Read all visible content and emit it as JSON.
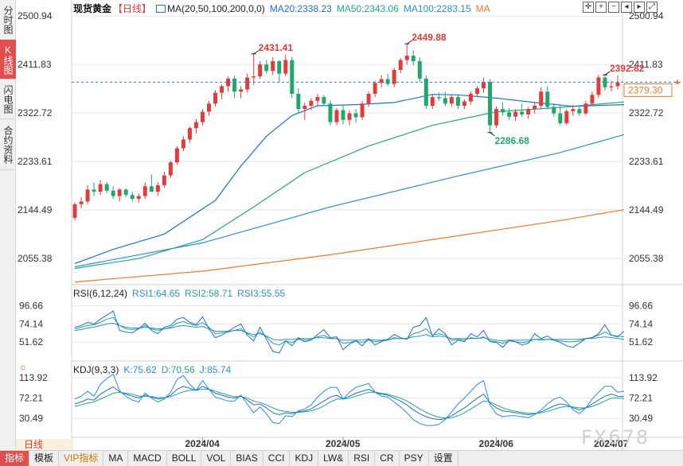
{
  "left_tabs": [
    {
      "label": "分时图",
      "active": false
    },
    {
      "label": "K线图",
      "active": true
    },
    {
      "label": "闪电图",
      "active": false
    },
    {
      "label": "合约资料",
      "active": false
    }
  ],
  "header": {
    "instrument": "现货黄金",
    "period_tag": "【日线】",
    "ma_label": "MA(20,50,100,200,0,0)",
    "ma20": "MA20:2338.23",
    "ma50": "MA50:2343.06",
    "ma100": "MA100:2283.15",
    "ma200": "MA"
  },
  "rsi_legend": {
    "name": "RSI(6,12,24)",
    "rsi1": "RSI1:64.65",
    "rsi2": "RSI2:58.71",
    "rsi3": "RSI3:55.55"
  },
  "kdj_legend": {
    "name": "KDJ(9,3,3)",
    "k": "K:75.62",
    "d": "D:70.56",
    "j": "J:85.74"
  },
  "price_axis": [
    "2500.94",
    "2411.83",
    "2322.72",
    "2233.61",
    "2144.49",
    "2055.38"
  ],
  "rsi_axis": [
    "96.66",
    "74.14",
    "51.62"
  ],
  "kdj_axis": [
    "113.92",
    "72.21",
    "30.49"
  ],
  "x_dates": [
    "2024/04",
    "2024/05",
    "2024/06",
    "2024/07"
  ],
  "annotations": {
    "high1": "2431.41",
    "high2": "2449.88",
    "low1": "2286.68",
    "last_high": "2392.82"
  },
  "current_price": "2379.30",
  "period_label": "日线",
  "watermark": "FX678",
  "toolbar": [
    "指标",
    "模板",
    "VIP指标",
    "MA",
    "MACD",
    "BOLL",
    "VOL",
    "BIAS",
    "CCI",
    "KDJ",
    "LW&",
    "RSI",
    "CR",
    "PSY",
    "设置"
  ],
  "colors": {
    "up": "#e03c3c",
    "down": "#20a86a",
    "ma20": "#1f6fd6",
    "ma50": "#22a884",
    "ma100": "#2a8fd8",
    "ma200": "#ee7a2a",
    "grid": "#e6e6e6"
  },
  "chart_data": {
    "type": "candlestick",
    "title": "现货黄金 日线",
    "x_ticks": [
      "2024/04",
      "2024/05",
      "2024/06",
      "2024/07"
    ],
    "ylim": [
      2010,
      2510
    ],
    "price_ticks": [
      2500.94,
      2411.83,
      2322.72,
      2233.61,
      2144.49,
      2055.38
    ],
    "candles": [
      [
        2130,
        2158,
        2125,
        2155
      ],
      [
        2155,
        2168,
        2148,
        2160
      ],
      [
        2160,
        2190,
        2155,
        2182
      ],
      [
        2182,
        2195,
        2170,
        2178
      ],
      [
        2178,
        2200,
        2172,
        2192
      ],
      [
        2192,
        2196,
        2175,
        2180
      ],
      [
        2180,
        2188,
        2165,
        2170
      ],
      [
        2170,
        2185,
        2160,
        2182
      ],
      [
        2182,
        2184,
        2168,
        2172
      ],
      [
        2172,
        2178,
        2160,
        2165
      ],
      [
        2165,
        2175,
        2158,
        2170
      ],
      [
        2170,
        2195,
        2165,
        2188
      ],
      [
        2188,
        2210,
        2182,
        2178
      ],
      [
        2178,
        2196,
        2170,
        2190
      ],
      [
        2190,
        2215,
        2185,
        2208
      ],
      [
        2208,
        2235,
        2203,
        2232
      ],
      [
        2232,
        2262,
        2228,
        2258
      ],
      [
        2258,
        2280,
        2252,
        2274
      ],
      [
        2274,
        2298,
        2268,
        2295
      ],
      [
        2295,
        2312,
        2285,
        2306
      ],
      [
        2306,
        2330,
        2300,
        2325
      ],
      [
        2325,
        2345,
        2318,
        2340
      ],
      [
        2340,
        2365,
        2335,
        2360
      ],
      [
        2360,
        2375,
        2348,
        2372
      ],
      [
        2372,
        2390,
        2362,
        2386
      ],
      [
        2386,
        2392,
        2350,
        2362
      ],
      [
        2362,
        2372,
        2350,
        2366
      ],
      [
        2366,
        2395,
        2360,
        2388
      ],
      [
        2388,
        2431,
        2375,
        2390
      ],
      [
        2390,
        2418,
        2385,
        2412
      ],
      [
        2412,
        2420,
        2395,
        2400
      ],
      [
        2400,
        2425,
        2392,
        2418
      ],
      [
        2418,
        2420,
        2380,
        2395
      ],
      [
        2395,
        2430,
        2390,
        2420
      ],
      [
        2420,
        2426,
        2350,
        2358
      ],
      [
        2358,
        2368,
        2322,
        2330
      ],
      [
        2330,
        2342,
        2310,
        2336
      ],
      [
        2336,
        2350,
        2328,
        2345
      ],
      [
        2345,
        2358,
        2335,
        2352
      ],
      [
        2352,
        2356,
        2336,
        2340
      ],
      [
        2340,
        2346,
        2300,
        2306
      ],
      [
        2306,
        2332,
        2300,
        2328
      ],
      [
        2328,
        2338,
        2302,
        2310
      ],
      [
        2310,
        2328,
        2300,
        2322
      ],
      [
        2322,
        2330,
        2305,
        2315
      ],
      [
        2315,
        2345,
        2310,
        2340
      ],
      [
        2340,
        2362,
        2334,
        2358
      ],
      [
        2358,
        2382,
        2352,
        2378
      ],
      [
        2378,
        2392,
        2370,
        2385
      ],
      [
        2385,
        2395,
        2372,
        2376
      ],
      [
        2376,
        2406,
        2370,
        2402
      ],
      [
        2402,
        2424,
        2396,
        2420
      ],
      [
        2420,
        2449,
        2412,
        2428
      ],
      [
        2428,
        2438,
        2410,
        2418
      ],
      [
        2418,
        2425,
        2380,
        2386
      ],
      [
        2386,
        2392,
        2330,
        2336
      ],
      [
        2336,
        2358,
        2330,
        2352
      ],
      [
        2352,
        2360,
        2345,
        2350
      ],
      [
        2350,
        2362,
        2335,
        2340
      ],
      [
        2340,
        2356,
        2334,
        2352
      ],
      [
        2352,
        2356,
        2330,
        2336
      ],
      [
        2336,
        2348,
        2330,
        2344
      ],
      [
        2344,
        2362,
        2338,
        2358
      ],
      [
        2358,
        2372,
        2354,
        2368
      ],
      [
        2368,
        2388,
        2360,
        2380
      ],
      [
        2380,
        2385,
        2286,
        2300
      ],
      [
        2300,
        2335,
        2295,
        2330
      ],
      [
        2330,
        2342,
        2318,
        2324
      ],
      [
        2324,
        2332,
        2310,
        2316
      ],
      [
        2316,
        2330,
        2308,
        2325
      ],
      [
        2325,
        2340,
        2316,
        2320
      ],
      [
        2320,
        2334,
        2312,
        2330
      ],
      [
        2330,
        2342,
        2322,
        2336
      ],
      [
        2336,
        2370,
        2330,
        2362
      ],
      [
        2362,
        2372,
        2330,
        2334
      ],
      [
        2334,
        2340,
        2316,
        2322
      ],
      [
        2322,
        2336,
        2300,
        2304
      ],
      [
        2304,
        2330,
        2300,
        2326
      ],
      [
        2326,
        2338,
        2318,
        2330
      ],
      [
        2330,
        2336,
        2318,
        2322
      ],
      [
        2322,
        2345,
        2318,
        2340
      ],
      [
        2340,
        2362,
        2335,
        2356
      ],
      [
        2356,
        2393,
        2350,
        2388
      ],
      [
        2388,
        2392,
        2364,
        2370
      ],
      [
        2370,
        2382,
        2362,
        2372
      ],
      [
        2372,
        2392,
        2366,
        2379
      ]
    ],
    "ma20": [
      [
        0,
        2046
      ],
      [
        6,
        2072
      ],
      [
        14,
        2100
      ],
      [
        22,
        2162
      ],
      [
        26,
        2225
      ],
      [
        30,
        2280
      ],
      [
        34,
        2318
      ],
      [
        38,
        2336
      ],
      [
        44,
        2338
      ],
      [
        50,
        2342
      ],
      [
        56,
        2357
      ],
      [
        60,
        2356
      ],
      [
        66,
        2350
      ],
      [
        72,
        2342
      ],
      [
        78,
        2335
      ],
      [
        86,
        2338
      ]
    ],
    "ma50": [
      [
        0,
        2037
      ],
      [
        10,
        2055
      ],
      [
        20,
        2090
      ],
      [
        28,
        2150
      ],
      [
        36,
        2213
      ],
      [
        46,
        2262
      ],
      [
        56,
        2300
      ],
      [
        66,
        2325
      ],
      [
        76,
        2333
      ],
      [
        86,
        2343
      ]
    ],
    "ma100": [
      [
        0,
        2040
      ],
      [
        20,
        2084
      ],
      [
        40,
        2150
      ],
      [
        60,
        2207
      ],
      [
        76,
        2250
      ],
      [
        86,
        2283
      ]
    ],
    "ma200": [
      [
        0,
        2012
      ],
      [
        20,
        2032
      ],
      [
        40,
        2062
      ],
      [
        60,
        2097
      ],
      [
        76,
        2125
      ],
      [
        86,
        2145
      ]
    ],
    "rsi": {
      "ylim": [
        30,
        105
      ],
      "ticks": [
        96.66,
        74.14,
        51.62
      ],
      "rsi1": [
        70,
        72,
        76,
        74,
        80,
        85,
        90,
        66,
        64,
        63,
        68,
        75,
        66,
        62,
        70,
        72,
        80,
        82,
        76,
        73,
        83,
        68,
        57,
        60,
        65,
        70,
        74,
        60,
        53,
        70,
        55,
        40,
        38,
        53,
        47,
        57,
        52,
        54,
        61,
        67,
        57,
        58,
        42,
        49,
        53,
        47,
        56,
        48,
        52,
        55,
        61,
        57,
        55,
        70,
        72,
        82,
        59,
        68,
        62,
        48,
        54,
        52,
        62,
        58,
        66,
        52,
        51,
        45,
        54,
        52,
        48,
        50,
        62,
        56,
        59,
        54,
        51,
        47,
        45,
        50,
        56,
        57,
        62,
        73,
        60,
        58,
        65
      ],
      "rsi2": [
        68,
        70,
        72,
        73,
        76,
        80,
        82,
        72,
        68,
        67,
        68,
        72,
        68,
        66,
        68,
        70,
        75,
        77,
        74,
        72,
        76,
        70,
        62,
        63,
        64,
        66,
        68,
        62,
        58,
        64,
        58,
        50,
        48,
        53,
        51,
        55,
        54,
        55,
        58,
        60,
        56,
        56,
        50,
        51,
        53,
        51,
        54,
        52,
        53,
        54,
        57,
        56,
        56,
        62,
        64,
        68,
        60,
        62,
        60,
        54,
        55,
        54,
        57,
        56,
        58,
        53,
        52,
        50,
        53,
        52,
        51,
        52,
        55,
        54,
        55,
        54,
        53,
        52,
        52,
        53,
        56,
        57,
        60,
        64,
        60,
        59,
        58
      ],
      "rsi3": [
        66,
        67,
        69,
        70,
        72,
        74,
        75,
        72,
        70,
        69,
        69,
        70,
        69,
        68,
        68,
        69,
        71,
        72,
        71,
        70,
        71,
        68,
        65,
        65,
        65,
        66,
        66,
        63,
        61,
        62,
        59,
        55,
        54,
        55,
        55,
        56,
        56,
        56,
        57,
        57,
        56,
        56,
        54,
        54,
        54,
        54,
        55,
        54,
        54,
        55,
        56,
        56,
        56,
        58,
        59,
        61,
        58,
        59,
        58,
        56,
        56,
        56,
        56,
        56,
        57,
        55,
        54,
        53,
        54,
        54,
        54,
        54,
        55,
        55,
        55,
        55,
        55,
        55,
        55,
        55,
        56,
        56,
        57,
        58,
        57,
        56,
        55
      ]
    },
    "kdj": {
      "ylim": [
        -5,
        125
      ],
      "ticks": [
        113.92,
        72.21,
        30.49
      ],
      "k": [
        60,
        64,
        70,
        68,
        80,
        88,
        95,
        85,
        80,
        76,
        72,
        78,
        74,
        70,
        72,
        78,
        90,
        96,
        92,
        88,
        96,
        90,
        82,
        78,
        74,
        72,
        76,
        68,
        58,
        60,
        52,
        42,
        38,
        42,
        40,
        44,
        46,
        50,
        58,
        66,
        74,
        78,
        70,
        76,
        82,
        86,
        90,
        84,
        80,
        78,
        72,
        66,
        58,
        48,
        40,
        34,
        30,
        28,
        30,
        36,
        44,
        52,
        62,
        72,
        80,
        62,
        52,
        46,
        44,
        42,
        40,
        38,
        40,
        44,
        50,
        56,
        60,
        58,
        52,
        48,
        52,
        60,
        68,
        76,
        80,
        76,
        75
      ],
      "d": [
        55,
        58,
        62,
        64,
        70,
        76,
        82,
        84,
        82,
        80,
        76,
        76,
        75,
        73,
        73,
        75,
        80,
        85,
        88,
        88,
        90,
        90,
        86,
        82,
        78,
        75,
        75,
        72,
        66,
        63,
        58,
        52,
        47,
        45,
        43,
        43,
        44,
        46,
        50,
        56,
        64,
        70,
        70,
        72,
        76,
        80,
        84,
        84,
        82,
        80,
        76,
        72,
        66,
        58,
        50,
        43,
        37,
        33,
        31,
        32,
        36,
        42,
        50,
        58,
        66,
        64,
        58,
        52,
        48,
        45,
        43,
        41,
        41,
        42,
        45,
        49,
        53,
        55,
        54,
        52,
        52,
        55,
        60,
        66,
        72,
        72,
        71
      ],
      "j": [
        70,
        76,
        86,
        76,
        100,
        112,
        121,
        87,
        76,
        68,
        64,
        82,
        72,
        64,
        70,
        84,
        110,
        118,
        100,
        88,
        108,
        90,
        74,
        70,
        66,
        66,
        78,
        60,
        42,
        54,
        40,
        22,
        20,
        36,
        34,
        46,
        50,
        58,
        74,
        86,
        94,
        94,
        70,
        84,
        94,
        98,
        102,
        84,
        76,
        74,
        64,
        54,
        42,
        28,
        20,
        16,
        16,
        18,
        28,
        44,
        60,
        72,
        86,
        100,
        108,
        58,
        40,
        34,
        36,
        36,
        34,
        32,
        38,
        48,
        60,
        70,
        74,
        64,
        48,
        40,
        52,
        70,
        84,
        96,
        96,
        84,
        86
      ]
    }
  }
}
